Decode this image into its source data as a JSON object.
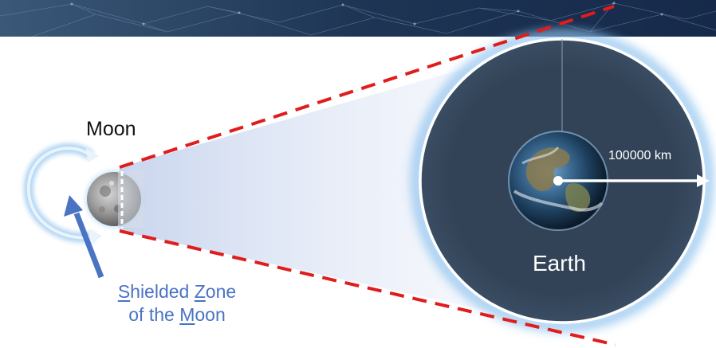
{
  "diagram": {
    "moon_label": "Moon",
    "earth_label": "Earth",
    "distance_label": "100000 km",
    "caption": {
      "line1": [
        {
          "text": "S",
          "underline": true
        },
        {
          "text": "hielded ",
          "underline": false
        },
        {
          "text": "Z",
          "underline": true
        },
        {
          "text": "one",
          "underline": false
        }
      ],
      "line2": [
        {
          "text": "of the ",
          "underline": false
        },
        {
          "text": "M",
          "underline": true
        },
        {
          "text": "oon",
          "underline": false
        }
      ]
    }
  },
  "colors": {
    "banner": "#1e3554",
    "cone": "#dfe6f5",
    "dashed_lines": "#e01c1c",
    "earth_region": "#334357",
    "glow": "#8ec2ee",
    "caption_text": "#4a73c4",
    "orbit_arrow": "#b9dcf6",
    "pointer_arrow": "#4a73c4"
  },
  "icons": {
    "moon": "moon-icon",
    "earth": "earth-icon",
    "orbit": "orbit-arrow-icon",
    "pointer": "pointer-arrow-icon"
  }
}
